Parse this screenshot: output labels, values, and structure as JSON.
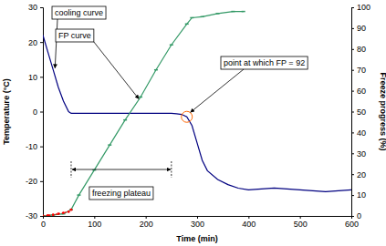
{
  "chart_data": {
    "type": "line",
    "xlabel": "Time (min)",
    "ylabel": "Temperature (°C)",
    "y2label": "Freeze progress (%)",
    "xlim": [
      0,
      600
    ],
    "xticks": [
      0,
      100,
      200,
      300,
      400,
      500,
      600
    ],
    "ylim": [
      -30,
      30
    ],
    "yticks": [
      -30,
      -20,
      -10,
      0,
      10,
      20,
      30
    ],
    "y2lim": [
      0,
      100
    ],
    "y2ticks": [
      0,
      10,
      20,
      30,
      40,
      50,
      60,
      70,
      80,
      90,
      100
    ],
    "grid": false,
    "series": [
      {
        "name": "cooling curve",
        "color": "#000080",
        "marker": "none",
        "line_style": "solid",
        "x": [
          0,
          10,
          20,
          30,
          40,
          50,
          55,
          60,
          100,
          150,
          200,
          250,
          260,
          270,
          280,
          290,
          300,
          310,
          320,
          340,
          360,
          380,
          400,
          450,
          500,
          550,
          600
        ],
        "values": [
          22,
          17,
          12,
          7,
          3,
          0,
          -0.5,
          -0.5,
          -0.5,
          -0.5,
          -0.5,
          -0.5,
          -0.6,
          -0.8,
          -1.5,
          -4,
          -9,
          -14,
          -17,
          -19.5,
          -21,
          -22,
          -22.5,
          -22,
          -22.5,
          -23,
          -22.5
        ]
      },
      {
        "name": "FP curve",
        "color": "#339966",
        "marker": "dash",
        "line_style": "solid",
        "axis": "y2",
        "x": [
          0,
          20,
          40,
          55,
          70,
          100,
          130,
          160,
          190,
          220,
          250,
          280,
          290,
          310,
          340,
          370,
          390
        ],
        "values": [
          0,
          0.5,
          1,
          3,
          10,
          22,
          34,
          46,
          57,
          70,
          82,
          92,
          95,
          95.5,
          97,
          98,
          98
        ]
      },
      {
        "color": "#ff0000",
        "marker": "dot",
        "line_style": "dotted",
        "axis": "y2",
        "x": [
          0,
          10,
          20,
          30,
          40,
          50,
          55
        ],
        "values": [
          0,
          0.3,
          0.6,
          1,
          1.5,
          2,
          3
        ]
      }
    ],
    "annotations": [
      {
        "text": "point at which FP = 92"
      },
      {
        "text": "freezing plateau"
      }
    ]
  }
}
